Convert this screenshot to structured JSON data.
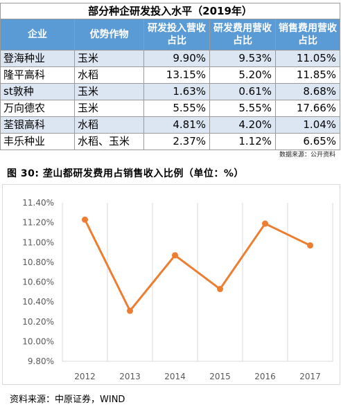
{
  "table": {
    "title": "部分种企研发投入水平（2019年）",
    "headers": [
      "企业",
      "优势作物",
      "研发投入营收占比",
      "研发费用营收占比",
      "销售费用营收占比"
    ],
    "rows": [
      {
        "company": "登海种业",
        "crop": "玉米",
        "rd_invest": "9.90%",
        "rd_expense": "9.53%",
        "sales_expense": "11.05%"
      },
      {
        "company": "隆平高科",
        "crop": "水稻",
        "rd_invest": "13.15%",
        "rd_expense": "5.20%",
        "sales_expense": "11.85%"
      },
      {
        "company": "st敦种",
        "crop": "玉米",
        "rd_invest": "1.63%",
        "rd_expense": "0.61%",
        "sales_expense": "8.68%"
      },
      {
        "company": "万向德农",
        "crop": "玉米",
        "rd_invest": "5.55%",
        "rd_expense": "5.55%",
        "sales_expense": "17.66%"
      },
      {
        "company": "荃银高科",
        "crop": "水稻",
        "rd_invest": "4.81%",
        "rd_expense": "4.20%",
        "sales_expense": "1.04%"
      },
      {
        "company": "丰乐种业",
        "crop": "水稻、玉米",
        "rd_invest": "2.37%",
        "rd_expense": "1.12%",
        "sales_expense": "6.65%"
      }
    ],
    "source": "数据来源：公开资料",
    "header_color": "#5b9bd5",
    "stripe_color": "#dce6f2"
  },
  "figure": {
    "title": "图 30:  垄山都研发费用占销售收入比例（单位：%）",
    "source": "资料来源：中原证券，WIND"
  },
  "chart_data": {
    "type": "line",
    "title": "",
    "xlabel": "",
    "ylabel": "",
    "categories": [
      "2012",
      "2013",
      "2014",
      "2015",
      "2016",
      "2017"
    ],
    "series": [
      {
        "values": [
          11.23,
          10.31,
          10.87,
          10.53,
          11.19,
          10.97
        ],
        "color": "#ed7d31"
      }
    ],
    "ylim": [
      9.8,
      11.4
    ],
    "yticks": [
      "9.80%",
      "10.00%",
      "10.20%",
      "10.40%",
      "10.60%",
      "10.80%",
      "11.00%",
      "11.20%",
      "11.40%"
    ],
    "grid": "vertical",
    "legend": "none"
  }
}
